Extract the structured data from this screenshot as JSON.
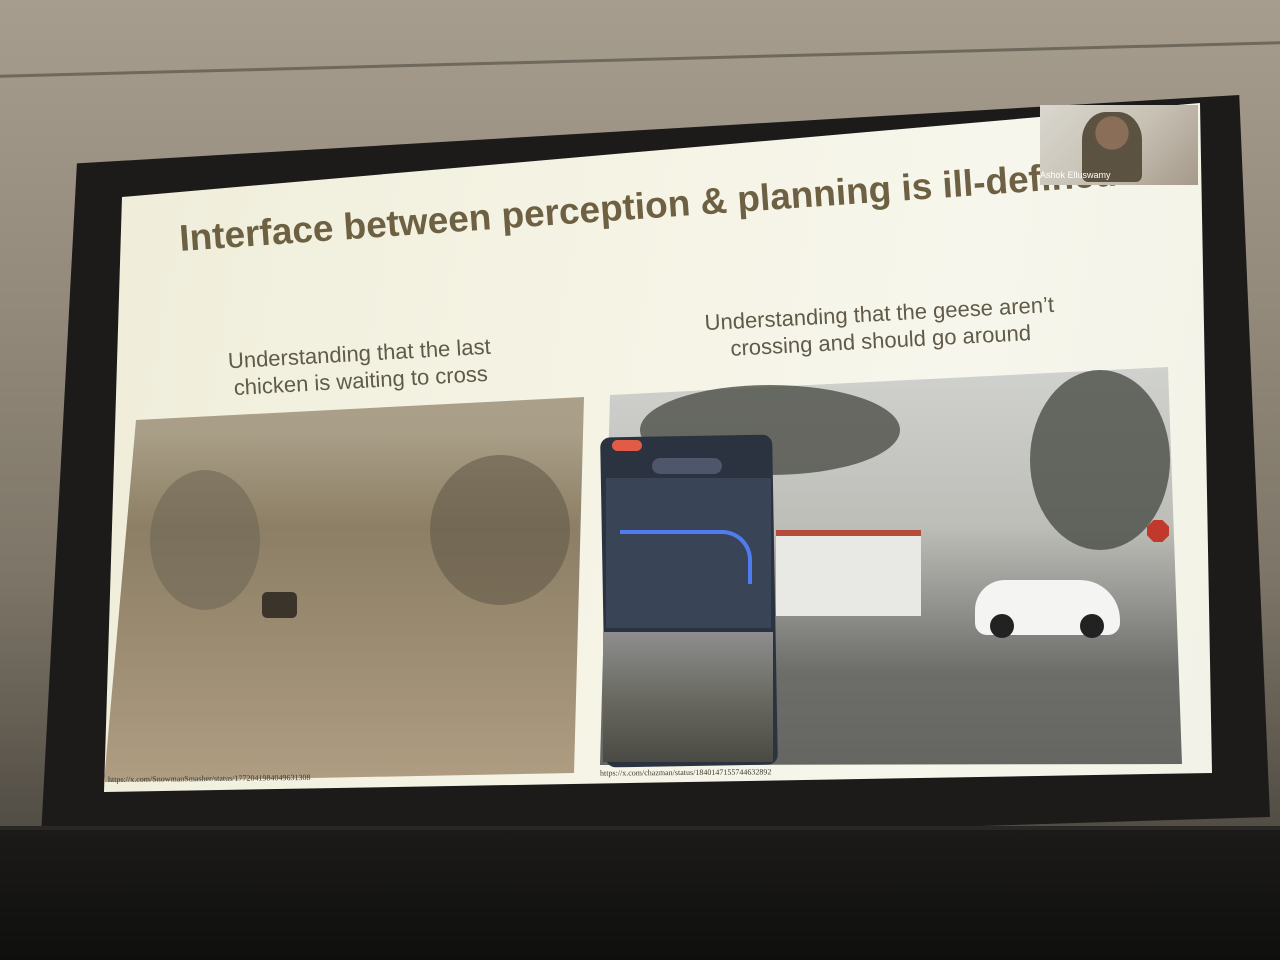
{
  "slide": {
    "title": "Interface between perception & planning is ill-defined",
    "left_caption": "Understanding that the last\nchicken is waiting to cross",
    "right_caption": "Understanding that the geese aren’t\ncrossing and should go around",
    "left_link": "https://x.com/SnowmanSmasher/status/1772041984049631308",
    "right_link": "https://x.com/chazman/status/1840147155744632892"
  },
  "webcam": {
    "name": "Ashok Elluswamy"
  },
  "colors": {
    "title": "#6e6143",
    "slide_bg": "#f5f3e4",
    "frame": "#1c1b19"
  }
}
